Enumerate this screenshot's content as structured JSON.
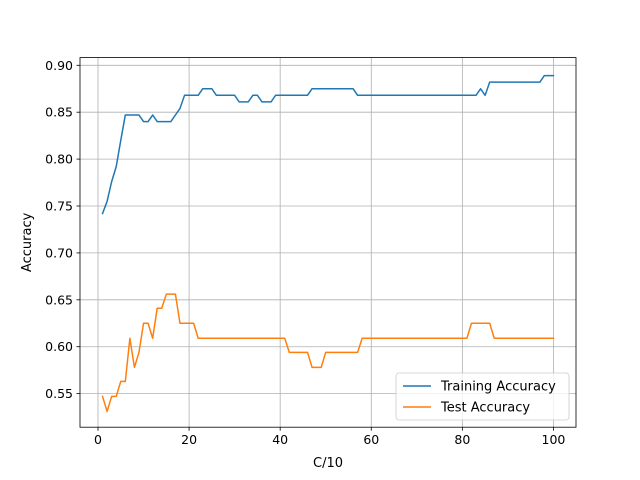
{
  "chart_data": {
    "type": "line",
    "xlabel": "C/10",
    "ylabel": "Accuracy",
    "xlim": [
      -3.95,
      104.95
    ],
    "ylim": [
      0.5142,
      0.9082
    ],
    "xticks": [
      0,
      20,
      40,
      60,
      80,
      100
    ],
    "yticks": [
      0.55,
      0.6,
      0.65,
      0.7,
      0.75,
      0.8,
      0.85,
      0.9
    ],
    "ytick_labels": [
      "0.55",
      "0.60",
      "0.65",
      "0.70",
      "0.75",
      "0.80",
      "0.85",
      "0.90"
    ],
    "grid": true,
    "legend_position": "lower-right",
    "series": [
      {
        "name": "Training Accuracy",
        "color": "#1f77b4",
        "points": [
          [
            1,
            0.742
          ],
          [
            2,
            0.755
          ],
          [
            3,
            0.776
          ],
          [
            4,
            0.792
          ],
          [
            5,
            0.82
          ],
          [
            6,
            0.847
          ],
          [
            7,
            0.847
          ],
          [
            8,
            0.847
          ],
          [
            9,
            0.847
          ],
          [
            10,
            0.84
          ],
          [
            11,
            0.84
          ],
          [
            12,
            0.847
          ],
          [
            13,
            0.84
          ],
          [
            14,
            0.84
          ],
          [
            15,
            0.84
          ],
          [
            16,
            0.84
          ],
          [
            17,
            0.847
          ],
          [
            18,
            0.854
          ],
          [
            19,
            0.868
          ],
          [
            20,
            0.868
          ],
          [
            21,
            0.868
          ],
          [
            22,
            0.868
          ],
          [
            23,
            0.875
          ],
          [
            24,
            0.875
          ],
          [
            25,
            0.875
          ],
          [
            26,
            0.868
          ],
          [
            27,
            0.868
          ],
          [
            28,
            0.868
          ],
          [
            29,
            0.868
          ],
          [
            30,
            0.868
          ],
          [
            31,
            0.861
          ],
          [
            32,
            0.861
          ],
          [
            33,
            0.861
          ],
          [
            34,
            0.868
          ],
          [
            35,
            0.868
          ],
          [
            36,
            0.861
          ],
          [
            37,
            0.861
          ],
          [
            38,
            0.861
          ],
          [
            39,
            0.868
          ],
          [
            40,
            0.868
          ],
          [
            41,
            0.868
          ],
          [
            42,
            0.868
          ],
          [
            43,
            0.868
          ],
          [
            44,
            0.868
          ],
          [
            45,
            0.868
          ],
          [
            46,
            0.868
          ],
          [
            47,
            0.875
          ],
          [
            48,
            0.875
          ],
          [
            49,
            0.875
          ],
          [
            50,
            0.875
          ],
          [
            51,
            0.875
          ],
          [
            52,
            0.875
          ],
          [
            53,
            0.875
          ],
          [
            54,
            0.875
          ],
          [
            55,
            0.875
          ],
          [
            56,
            0.875
          ],
          [
            57,
            0.868
          ],
          [
            58,
            0.868
          ],
          [
            59,
            0.868
          ],
          [
            60,
            0.868
          ],
          [
            65,
            0.868
          ],
          [
            70,
            0.868
          ],
          [
            75,
            0.868
          ],
          [
            80,
            0.868
          ],
          [
            81,
            0.868
          ],
          [
            82,
            0.868
          ],
          [
            83,
            0.868
          ],
          [
            84,
            0.875
          ],
          [
            85,
            0.868
          ],
          [
            86,
            0.882
          ],
          [
            87,
            0.882
          ],
          [
            88,
            0.882
          ],
          [
            90,
            0.882
          ],
          [
            95,
            0.882
          ],
          [
            97,
            0.882
          ],
          [
            98,
            0.889
          ],
          [
            99,
            0.889
          ],
          [
            100,
            0.889
          ]
        ]
      },
      {
        "name": "Test Accuracy",
        "color": "#ff7f0e",
        "points": [
          [
            1,
            0.547
          ],
          [
            2,
            0.531
          ],
          [
            3,
            0.547
          ],
          [
            4,
            0.547
          ],
          [
            5,
            0.563
          ],
          [
            6,
            0.563
          ],
          [
            7,
            0.609
          ],
          [
            8,
            0.578
          ],
          [
            9,
            0.594
          ],
          [
            10,
            0.625
          ],
          [
            11,
            0.625
          ],
          [
            12,
            0.609
          ],
          [
            13,
            0.641
          ],
          [
            14,
            0.641
          ],
          [
            15,
            0.656
          ],
          [
            16,
            0.656
          ],
          [
            17,
            0.656
          ],
          [
            18,
            0.625
          ],
          [
            19,
            0.625
          ],
          [
            20,
            0.625
          ],
          [
            21,
            0.625
          ],
          [
            22,
            0.609
          ],
          [
            23,
            0.609
          ],
          [
            30,
            0.609
          ],
          [
            40,
            0.609
          ],
          [
            41,
            0.609
          ],
          [
            42,
            0.594
          ],
          [
            43,
            0.594
          ],
          [
            44,
            0.594
          ],
          [
            45,
            0.594
          ],
          [
            46,
            0.594
          ],
          [
            47,
            0.578
          ],
          [
            48,
            0.578
          ],
          [
            49,
            0.578
          ],
          [
            50,
            0.594
          ],
          [
            51,
            0.594
          ],
          [
            55,
            0.594
          ],
          [
            56,
            0.594
          ],
          [
            57,
            0.594
          ],
          [
            58,
            0.609
          ],
          [
            59,
            0.609
          ],
          [
            60,
            0.609
          ],
          [
            70,
            0.609
          ],
          [
            80,
            0.609
          ],
          [
            81,
            0.609
          ],
          [
            82,
            0.625
          ],
          [
            83,
            0.625
          ],
          [
            84,
            0.625
          ],
          [
            85,
            0.625
          ],
          [
            86,
            0.625
          ],
          [
            87,
            0.609
          ],
          [
            88,
            0.609
          ],
          [
            90,
            0.609
          ],
          [
            95,
            0.609
          ],
          [
            100,
            0.609
          ]
        ]
      }
    ]
  }
}
